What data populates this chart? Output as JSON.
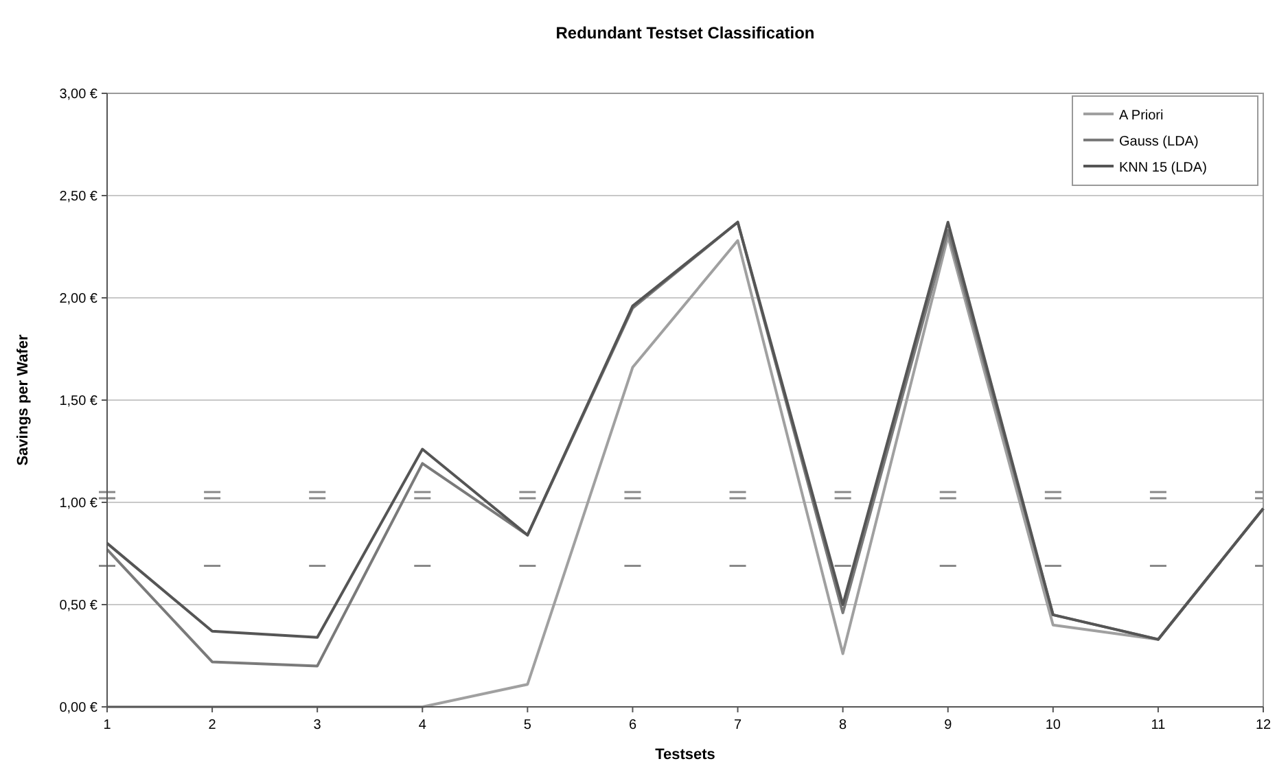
{
  "chart_data": {
    "type": "line",
    "title": "Redundant Testset Classification",
    "xlabel": "Testsets",
    "ylabel": "Savings per Wafer",
    "x": [
      1,
      2,
      3,
      4,
      5,
      6,
      7,
      8,
      9,
      10,
      11,
      12
    ],
    "series": [
      {
        "name": "A Priori",
        "color": "#a0a0a0",
        "values": [
          0,
          0,
          0,
          0,
          0.11,
          1.66,
          2.28,
          0.26,
          2.3,
          0.4,
          0.33,
          0.97
        ]
      },
      {
        "name": "Gauss (LDA)",
        "color": "#7a7a7a",
        "values": [
          0.77,
          0.22,
          0.2,
          1.19,
          0.84,
          1.95,
          2.37,
          0.46,
          2.33,
          0.45,
          0.33,
          0.97
        ]
      },
      {
        "name": "KNN 15 (LDA)",
        "color": "#555555",
        "values": [
          0.8,
          0.37,
          0.34,
          1.26,
          0.84,
          1.96,
          2.37,
          0.5,
          2.37,
          0.45,
          0.33,
          0.97
        ]
      }
    ],
    "xlim": [
      1,
      12
    ],
    "xticks": [
      1,
      2,
      3,
      4,
      5,
      6,
      7,
      8,
      9,
      10,
      11,
      12
    ],
    "ylim": [
      0,
      3
    ],
    "yticks": [
      {
        "value": 0,
        "label": "0,00 €"
      },
      {
        "value": 0.5,
        "label": "0,50 €"
      },
      {
        "value": 1,
        "label": "1,00 €"
      },
      {
        "value": 1.5,
        "label": "1,50 €"
      },
      {
        "value": 2,
        "label": "2,00 €"
      },
      {
        "value": 2.5,
        "label": "2,50 €"
      },
      {
        "value": 3,
        "label": "3,00 €"
      }
    ],
    "ref_lines": [
      {
        "axis": "y",
        "value": 1.05,
        "color": "#888888",
        "line_style": "dashed"
      },
      {
        "axis": "y",
        "value": 1.02,
        "color": "#888888",
        "line_style": "dashed"
      },
      {
        "axis": "y",
        "value": 0.69,
        "color": "#888888",
        "line_style": "dashed"
      }
    ],
    "grid": "y",
    "legend": "top right",
    "marker": "none",
    "line_style": "solid"
  }
}
